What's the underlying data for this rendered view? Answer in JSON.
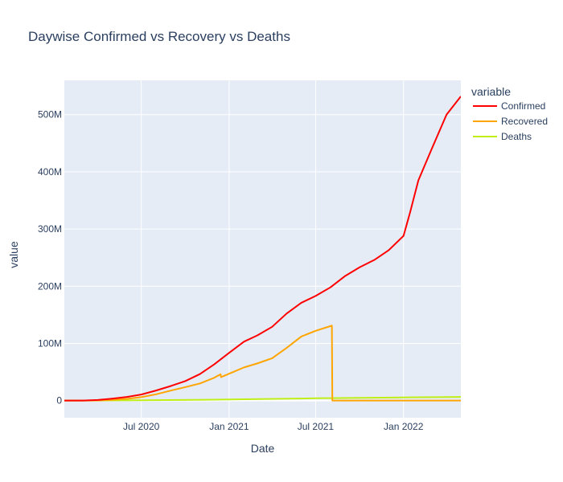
{
  "chart_data": {
    "type": "line",
    "title": "Daywise Confirmed vs Recovery vs Deaths",
    "xlabel": "Date",
    "ylabel": "value",
    "xlim": [
      "2020-01-22",
      "2022-05-01"
    ],
    "ylim": [
      -30,
      560
    ],
    "x_ticks": [
      {
        "label": "Jul 2020",
        "date": "2020-07-01"
      },
      {
        "label": "Jan 2021",
        "date": "2021-01-01"
      },
      {
        "label": "Jul 2021",
        "date": "2021-07-01"
      },
      {
        "label": "Jan 2022",
        "date": "2022-01-01"
      }
    ],
    "y_ticks": [
      {
        "label": "0",
        "value": 0
      },
      {
        "label": "100M",
        "value": 100
      },
      {
        "label": "200M",
        "value": 200
      },
      {
        "label": "300M",
        "value": 300
      },
      {
        "label": "400M",
        "value": 400
      },
      {
        "label": "500M",
        "value": 500
      }
    ],
    "y_unit": "millions",
    "grid": true,
    "legend": {
      "title": "variable",
      "position": "top-right"
    },
    "series": [
      {
        "name": "Confirmed",
        "color": "#ff0000",
        "points": [
          [
            "2020-01-22",
            0
          ],
          [
            "2020-03-01",
            0.1
          ],
          [
            "2020-04-01",
            1
          ],
          [
            "2020-05-01",
            3.4
          ],
          [
            "2020-06-01",
            6.3
          ],
          [
            "2020-07-01",
            10.6
          ],
          [
            "2020-08-01",
            17.6
          ],
          [
            "2020-09-01",
            25.5
          ],
          [
            "2020-10-01",
            34
          ],
          [
            "2020-11-01",
            46.5
          ],
          [
            "2020-12-01",
            63.5
          ],
          [
            "2021-01-01",
            83.5
          ],
          [
            "2021-02-01",
            103
          ],
          [
            "2021-03-01",
            114
          ],
          [
            "2021-04-01",
            129
          ],
          [
            "2021-05-01",
            152
          ],
          [
            "2021-06-01",
            171
          ],
          [
            "2021-07-01",
            183
          ],
          [
            "2021-08-01",
            198
          ],
          [
            "2021-09-01",
            218
          ],
          [
            "2021-10-01",
            233
          ],
          [
            "2021-11-01",
            246
          ],
          [
            "2021-12-01",
            263
          ],
          [
            "2022-01-01",
            288
          ],
          [
            "2022-01-15",
            330
          ],
          [
            "2022-02-01",
            385
          ],
          [
            "2022-03-01",
            440
          ],
          [
            "2022-04-01",
            500
          ],
          [
            "2022-05-01",
            532
          ]
        ]
      },
      {
        "name": "Recovered",
        "color": "#ffa500",
        "points": [
          [
            "2020-01-22",
            0
          ],
          [
            "2020-03-01",
            0.05
          ],
          [
            "2020-04-01",
            0.2
          ],
          [
            "2020-05-01",
            1.3
          ],
          [
            "2020-06-01",
            3
          ],
          [
            "2020-07-01",
            6
          ],
          [
            "2020-08-01",
            11
          ],
          [
            "2020-09-01",
            17.5
          ],
          [
            "2020-10-01",
            23.5
          ],
          [
            "2020-11-01",
            30
          ],
          [
            "2020-12-01",
            40
          ],
          [
            "2020-12-14",
            46
          ],
          [
            "2020-12-15",
            41
          ],
          [
            "2021-01-01",
            47
          ],
          [
            "2021-02-01",
            58
          ],
          [
            "2021-03-01",
            65
          ],
          [
            "2021-04-01",
            74
          ],
          [
            "2021-05-01",
            92
          ],
          [
            "2021-06-01",
            112
          ],
          [
            "2021-07-01",
            122
          ],
          [
            "2021-08-04",
            131
          ],
          [
            "2021-08-05",
            0
          ],
          [
            "2022-05-01",
            0
          ]
        ]
      },
      {
        "name": "Deaths",
        "color": "#bfef16",
        "points": [
          [
            "2020-01-22",
            0
          ],
          [
            "2020-07-01",
            0.5
          ],
          [
            "2021-01-01",
            1.9
          ],
          [
            "2021-07-01",
            4
          ],
          [
            "2022-01-01",
            5.5
          ],
          [
            "2022-05-01",
            6.3
          ]
        ]
      }
    ]
  }
}
